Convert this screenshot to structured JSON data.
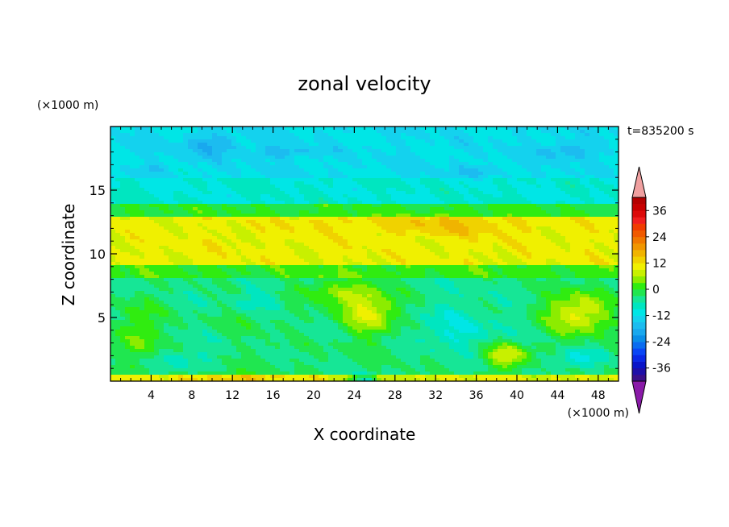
{
  "chart_data": {
    "type": "heatmap",
    "title": "zonal velocity",
    "xlabel": "X coordinate",
    "ylabel": "Z coordinate",
    "x_unit": "(×1000 m)",
    "y_unit": "(×1000 m)",
    "time_label": "t=835200 s",
    "xlim": [
      0,
      50
    ],
    "ylim": [
      0,
      20
    ],
    "x_ticks": [
      4,
      8,
      12,
      16,
      20,
      24,
      28,
      32,
      36,
      40,
      44,
      48
    ],
    "y_ticks": [
      5,
      10,
      15
    ],
    "colorbar": {
      "levels": [
        -42,
        -39,
        -36,
        -33,
        -30,
        -27,
        -24,
        -21,
        -18,
        -15,
        -12,
        -9,
        -6,
        -3,
        0,
        3,
        6,
        9,
        12,
        15,
        18,
        21,
        24,
        27,
        30,
        33,
        36,
        39,
        42
      ],
      "colors": [
        "#3a0f8a",
        "#1e0fa8",
        "#0a14c8",
        "#0a28e6",
        "#0a46f5",
        "#0a6cf0",
        "#0a8ee8",
        "#19a8ee",
        "#1cbcf0",
        "#14d2ee",
        "#00e6e6",
        "#00e6c0",
        "#16e696",
        "#20e650",
        "#30ec10",
        "#8cec00",
        "#c8f000",
        "#f0f000",
        "#f0d200",
        "#f0b400",
        "#f09600",
        "#f07800",
        "#f05a00",
        "#f03c00",
        "#f01e1e",
        "#dc0a0a",
        "#c80000",
        "#b40000"
      ],
      "under_color": "#8a1aa8",
      "over_color": "#f0a0a0",
      "tick_labels": [
        "36",
        "24",
        "12",
        "0",
        "-12",
        "-24",
        "-36"
      ]
    },
    "value_bands_by_height": [
      {
        "z_range": [
          0,
          0.6
        ],
        "typical_value": 9
      },
      {
        "z_range": [
          0.6,
          3
        ],
        "typical_value": -3
      },
      {
        "z_range": [
          3,
          8
        ],
        "typical_value": -4
      },
      {
        "z_range": [
          8,
          9
        ],
        "typical_value": 1
      },
      {
        "z_range": [
          9,
          13
        ],
        "typical_value": 10
      },
      {
        "z_range": [
          13,
          14
        ],
        "typical_value": 0
      },
      {
        "z_range": [
          14,
          16
        ],
        "typical_value": -9
      },
      {
        "z_range": [
          16,
          20
        ],
        "typical_value": -12
      }
    ]
  }
}
